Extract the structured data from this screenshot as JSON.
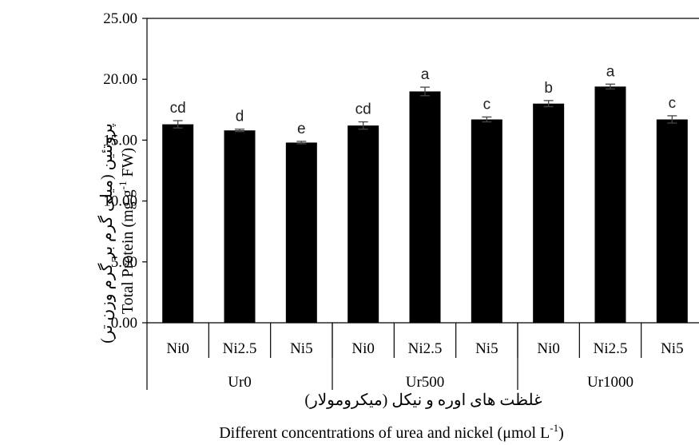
{
  "chart_data": {
    "type": "bar",
    "categories": [
      "Ni0",
      "Ni2.5",
      "Ni5",
      "Ni0",
      "Ni2.5",
      "Ni5",
      "Ni0",
      "Ni2.5",
      "Ni5"
    ],
    "groups": [
      {
        "label": "Ur0",
        "start": 0,
        "end": 2
      },
      {
        "label": "Ur500",
        "start": 3,
        "end": 5
      },
      {
        "label": "Ur1000",
        "start": 6,
        "end": 8
      }
    ],
    "values": [
      16.3,
      15.8,
      14.8,
      16.2,
      19.0,
      16.7,
      18.0,
      19.4,
      16.7
    ],
    "errors": [
      0.3,
      0.1,
      0.1,
      0.3,
      0.35,
      0.2,
      0.25,
      0.2,
      0.3
    ],
    "significance": [
      "cd",
      "d",
      "e",
      "cd",
      "a",
      "c",
      "b",
      "a",
      "c"
    ],
    "ylim": [
      0,
      25
    ],
    "yticks": [
      "0.00",
      "5.00",
      "10.00",
      "15.00",
      "20.00",
      "25.00"
    ],
    "ylabel_fa": "پروتئین (میلی گرم بر گرم وزن تر)",
    "ylabel_en": "Total Protein (mg g",
    "ylabel_en_sup": "-1",
    "ylabel_en_tail": " FW)",
    "xlabel_fa": "غلظت های اوره و نیکل (میکرومولار)",
    "xlabel_en": "Different concentrations of urea and nickel (μmol L",
    "xlabel_en_sup": "-1",
    "xlabel_en_tail": ")",
    "bar_color": "#000000"
  }
}
